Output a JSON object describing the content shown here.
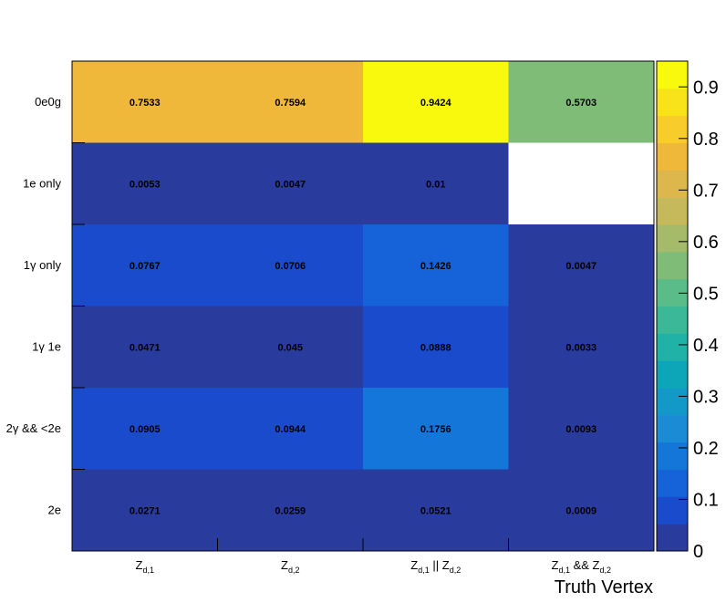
{
  "chart_data": {
    "type": "heatmap",
    "x_title": "Truth Vertex",
    "x_categories": [
      {
        "main": "Z",
        "sub": "d,1",
        "rest": "",
        "sub2": ""
      },
      {
        "main": "Z",
        "sub": "d,2",
        "rest": "",
        "sub2": ""
      },
      {
        "main": "Z",
        "sub": "d,1",
        "rest": " || Z",
        "sub2": "d,2"
      },
      {
        "main": "Z",
        "sub": "d,1",
        "rest": " && Z",
        "sub2": "d,2"
      }
    ],
    "y_categories": [
      "0e0g",
      "1e only",
      "1γ only",
      "1γ 1e",
      "2γ && <2e",
      "2e"
    ],
    "values": [
      [
        0.7533,
        0.7594,
        0.9424,
        0.5703
      ],
      [
        0.0053,
        0.0047,
        0.01,
        null
      ],
      [
        0.0767,
        0.0706,
        0.1426,
        0.0047
      ],
      [
        0.0471,
        0.045,
        0.0888,
        0.0033
      ],
      [
        0.0905,
        0.0944,
        0.1756,
        0.0093
      ],
      [
        0.0271,
        0.0259,
        0.0521,
        0.0009
      ]
    ],
    "cell_labels": [
      [
        "0.7533",
        "0.7594",
        "0.9424",
        "0.5703"
      ],
      [
        "0.0053",
        "0.0047",
        "0.01",
        ""
      ],
      [
        "0.0767",
        "0.0706",
        "0.1426",
        "0.0047"
      ],
      [
        "0.0471",
        "0.045",
        "0.0888",
        "0.0033"
      ],
      [
        "0.0905",
        "0.0944",
        "0.1756",
        "0.0093"
      ],
      [
        "0.0271",
        "0.0259",
        "0.0521",
        "0.0009"
      ]
    ],
    "z_range": [
      0,
      0.95
    ],
    "z_ticks": [
      "0",
      "0.1",
      "0.2",
      "0.3",
      "0.4",
      "0.5",
      "0.6",
      "0.7",
      "0.8",
      "0.9"
    ],
    "z_tick_values": [
      0,
      0.1,
      0.2,
      0.3,
      0.4,
      0.5,
      0.6,
      0.7,
      0.8,
      0.9
    ],
    "palette": [
      "#2a3b9e",
      "#1a4bcc",
      "#1662d8",
      "#1576d9",
      "#1b8bd6",
      "#1399c8",
      "#0da6b8",
      "#21b2a7",
      "#3ab898",
      "#5abc88",
      "#7fbc78",
      "#a5bb6a",
      "#c6b95b",
      "#ddb74c",
      "#f0b83b",
      "#f8cc2b",
      "#f8e31a",
      "#f9f90e"
    ],
    "empty_color": "#ffffff"
  }
}
